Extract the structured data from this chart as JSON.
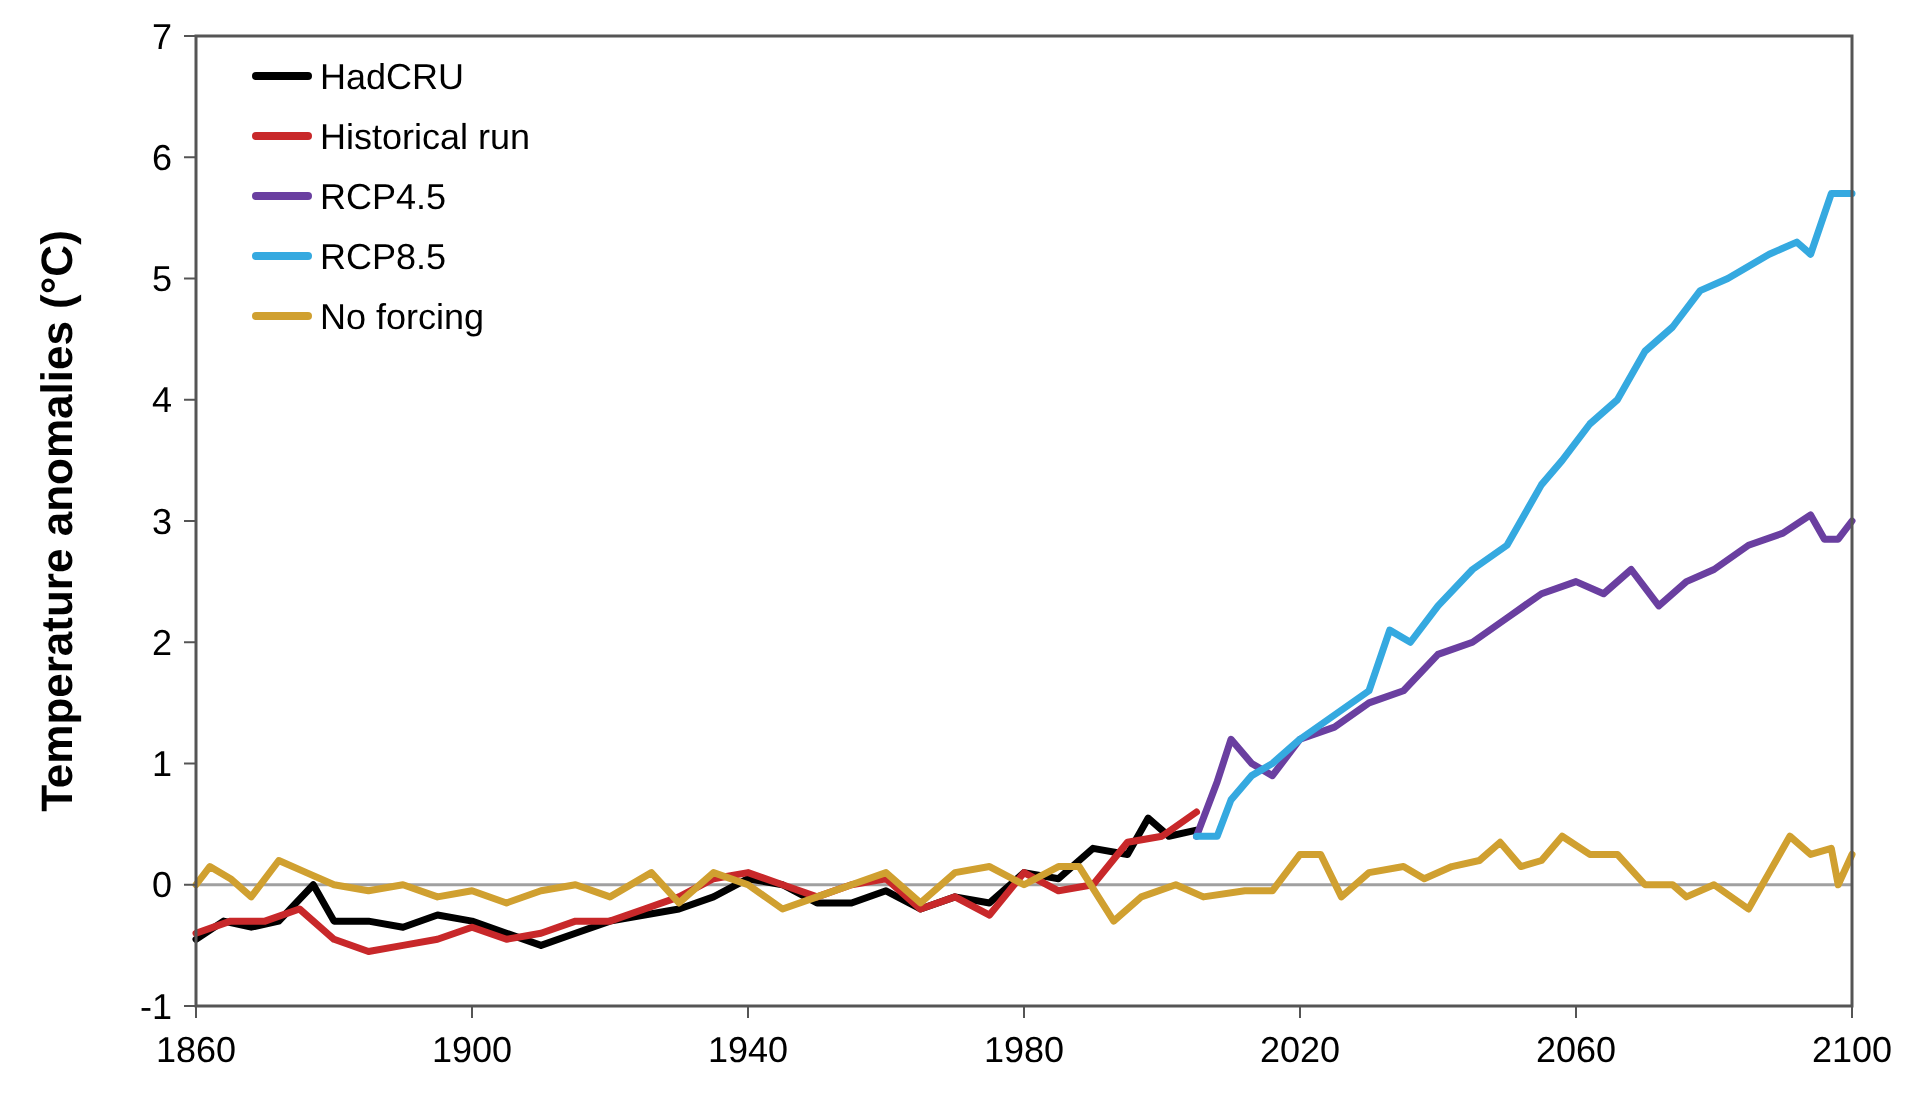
{
  "chart_data": {
    "type": "line",
    "ylabel": "Temperature anomalies (°C)",
    "xlim": [
      1860,
      2100
    ],
    "xticks": [
      1860,
      1900,
      1940,
      1980,
      2020,
      2060,
      2100
    ],
    "ylim": [
      -1,
      7
    ],
    "yticks": [
      -1,
      0,
      1,
      2,
      3,
      4,
      5,
      6,
      7
    ],
    "grid": false,
    "legend": "top left",
    "marker": "none",
    "line_style": "solid",
    "ref_lines": [
      {
        "axis": "y",
        "value": 0,
        "color": "#a0a0a0"
      }
    ],
    "series": [
      {
        "name": "HadCRU",
        "color": "#000000",
        "x": [
          1860,
          1864,
          1868,
          1872,
          1877,
          1880,
          1885,
          1890,
          1895,
          1900,
          1905,
          1910,
          1915,
          1920,
          1925,
          1930,
          1935,
          1940,
          1945,
          1950,
          1955,
          1960,
          1965,
          1970,
          1975,
          1980,
          1985,
          1990,
          1995,
          1998,
          2001,
          2005
        ],
        "values": [
          -0.45,
          -0.3,
          -0.35,
          -0.3,
          0.0,
          -0.3,
          -0.3,
          -0.35,
          -0.25,
          -0.3,
          -0.4,
          -0.5,
          -0.4,
          -0.3,
          -0.25,
          -0.2,
          -0.1,
          0.05,
          0.0,
          -0.15,
          -0.15,
          -0.05,
          -0.2,
          -0.1,
          -0.15,
          0.1,
          0.05,
          0.3,
          0.25,
          0.55,
          0.4,
          0.45
        ]
      },
      {
        "name": "Historical run",
        "color": "#c8282a",
        "x": [
          1860,
          1865,
          1870,
          1875,
          1880,
          1885,
          1890,
          1895,
          1900,
          1905,
          1910,
          1915,
          1920,
          1925,
          1930,
          1935,
          1940,
          1945,
          1950,
          1955,
          1960,
          1965,
          1970,
          1975,
          1980,
          1985,
          1990,
          1995,
          2000,
          2005
        ],
        "values": [
          -0.4,
          -0.3,
          -0.3,
          -0.2,
          -0.45,
          -0.55,
          -0.5,
          -0.45,
          -0.35,
          -0.45,
          -0.4,
          -0.3,
          -0.3,
          -0.2,
          -0.1,
          0.05,
          0.1,
          0.0,
          -0.1,
          0.0,
          0.05,
          -0.2,
          -0.1,
          -0.25,
          0.1,
          -0.05,
          0.0,
          0.35,
          0.4,
          0.6
        ]
      },
      {
        "name": "RCP4.5",
        "color": "#6a3fa0",
        "x": [
          2005,
          2008,
          2010,
          2013,
          2016,
          2020,
          2025,
          2030,
          2035,
          2040,
          2045,
          2050,
          2055,
          2060,
          2064,
          2068,
          2072,
          2076,
          2080,
          2085,
          2090,
          2094,
          2096,
          2098,
          2100
        ],
        "values": [
          0.4,
          0.85,
          1.2,
          1.0,
          0.9,
          1.2,
          1.3,
          1.5,
          1.6,
          1.9,
          2.0,
          2.2,
          2.4,
          2.5,
          2.4,
          2.6,
          2.3,
          2.5,
          2.6,
          2.8,
          2.9,
          3.05,
          2.85,
          2.85,
          3.0
        ]
      },
      {
        "name": "RCP8.5",
        "color": "#35a9e0",
        "x": [
          2005,
          2008,
          2010,
          2013,
          2016,
          2020,
          2025,
          2030,
          2033,
          2036,
          2040,
          2045,
          2050,
          2055,
          2058,
          2062,
          2066,
          2070,
          2074,
          2078,
          2082,
          2088,
          2092,
          2094,
          2097,
          2100
        ],
        "values": [
          0.4,
          0.4,
          0.7,
          0.9,
          1.0,
          1.2,
          1.4,
          1.6,
          2.1,
          2.0,
          2.3,
          2.6,
          2.8,
          3.3,
          3.5,
          3.8,
          4.0,
          4.4,
          4.6,
          4.9,
          5.0,
          5.2,
          5.3,
          5.2,
          5.7,
          5.7
        ]
      },
      {
        "name": "No forcing",
        "color": "#d0a030",
        "x": [
          1860,
          1862,
          1865,
          1868,
          1872,
          1876,
          1880,
          1885,
          1890,
          1895,
          1900,
          1905,
          1910,
          1915,
          1920,
          1926,
          1930,
          1935,
          1940,
          1945,
          1950,
          1955,
          1960,
          1965,
          1970,
          1975,
          1980,
          1985,
          1988,
          1993,
          1997,
          2002,
          2006,
          2012,
          2016,
          2020,
          2023,
          2026,
          2030,
          2035,
          2038,
          2042,
          2046,
          2049,
          2052,
          2055,
          2058,
          2062,
          2066,
          2070,
          2074,
          2076,
          2080,
          2085,
          2088,
          2091,
          2094,
          2097,
          2098,
          2100
        ],
        "values": [
          0.0,
          0.15,
          0.05,
          -0.1,
          0.2,
          0.1,
          0.0,
          -0.05,
          0.0,
          -0.1,
          -0.05,
          -0.15,
          -0.05,
          0.0,
          -0.1,
          0.1,
          -0.15,
          0.1,
          0.0,
          -0.2,
          -0.1,
          0.0,
          0.1,
          -0.15,
          0.1,
          0.15,
          0.0,
          0.15,
          0.15,
          -0.3,
          -0.1,
          0.0,
          -0.1,
          -0.05,
          -0.05,
          0.25,
          0.25,
          -0.1,
          0.1,
          0.15,
          0.05,
          0.15,
          0.2,
          0.35,
          0.15,
          0.2,
          0.4,
          0.25,
          0.25,
          0.0,
          0.0,
          -0.1,
          0.0,
          -0.2,
          0.1,
          0.4,
          0.25,
          0.3,
          0.0,
          0.25
        ]
      }
    ]
  }
}
